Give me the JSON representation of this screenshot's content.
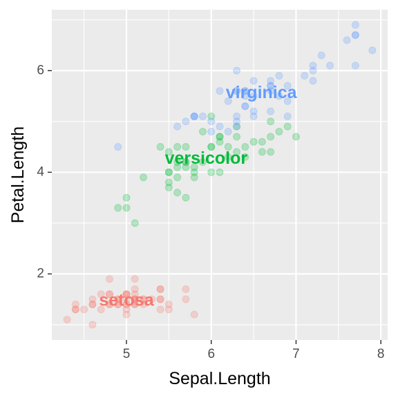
{
  "chart_data": {
    "type": "scatter",
    "xlabel": "Sepal.Length",
    "ylabel": "Petal.Length",
    "xlim": [
      4.12,
      8.08
    ],
    "ylim": [
      0.7,
      7.2
    ],
    "x_major_ticks": [
      5,
      6,
      7,
      8
    ],
    "x_minor_ticks": [
      4.5,
      5.5,
      6.5,
      7.5
    ],
    "y_major_ticks": [
      2,
      4,
      6
    ],
    "y_minor_ticks": [
      1,
      3,
      5,
      7
    ],
    "x_tick_labels": [
      "5",
      "6",
      "7",
      "8"
    ],
    "y_tick_labels": [
      "2",
      "4",
      "6"
    ],
    "grid": true,
    "legend": "none",
    "point_opacity": 0.25,
    "series": [
      {
        "name": "setosa",
        "color": "#F8766D",
        "label": {
          "text": "setosa",
          "x": 5.0,
          "y": 1.46
        },
        "points": [
          [
            5.1,
            1.4
          ],
          [
            4.9,
            1.4
          ],
          [
            4.7,
            1.3
          ],
          [
            4.6,
            1.5
          ],
          [
            5.0,
            1.4
          ],
          [
            5.4,
            1.7
          ],
          [
            4.6,
            1.4
          ],
          [
            5.0,
            1.5
          ],
          [
            4.4,
            1.4
          ],
          [
            4.9,
            1.5
          ],
          [
            5.4,
            1.5
          ],
          [
            4.8,
            1.6
          ],
          [
            4.8,
            1.4
          ],
          [
            4.3,
            1.1
          ],
          [
            5.8,
            1.2
          ],
          [
            5.7,
            1.5
          ],
          [
            5.4,
            1.3
          ],
          [
            5.1,
            1.4
          ],
          [
            5.7,
            1.7
          ],
          [
            5.1,
            1.5
          ],
          [
            5.4,
            1.7
          ],
          [
            5.1,
            1.5
          ],
          [
            4.6,
            1.0
          ],
          [
            5.1,
            1.7
          ],
          [
            4.8,
            1.9
          ],
          [
            5.0,
            1.6
          ],
          [
            5.0,
            1.6
          ],
          [
            5.2,
            1.5
          ],
          [
            5.2,
            1.4
          ],
          [
            4.7,
            1.6
          ],
          [
            4.8,
            1.6
          ],
          [
            5.4,
            1.5
          ],
          [
            5.2,
            1.5
          ],
          [
            5.5,
            1.4
          ],
          [
            4.9,
            1.5
          ],
          [
            5.0,
            1.2
          ],
          [
            5.5,
            1.3
          ],
          [
            4.9,
            1.4
          ],
          [
            4.4,
            1.3
          ],
          [
            5.1,
            1.5
          ],
          [
            5.0,
            1.3
          ],
          [
            4.5,
            1.3
          ],
          [
            4.4,
            1.3
          ],
          [
            5.0,
            1.6
          ],
          [
            5.1,
            1.9
          ],
          [
            4.8,
            1.4
          ],
          [
            5.1,
            1.6
          ],
          [
            4.6,
            1.4
          ],
          [
            5.3,
            1.5
          ],
          [
            5.0,
            1.4
          ]
        ]
      },
      {
        "name": "versicolor",
        "color": "#00BA38",
        "label": {
          "text": "versicolor",
          "x": 5.94,
          "y": 4.26
        },
        "points": [
          [
            7.0,
            4.7
          ],
          [
            6.4,
            4.5
          ],
          [
            6.9,
            4.9
          ],
          [
            5.5,
            4.0
          ],
          [
            6.5,
            4.6
          ],
          [
            5.7,
            4.5
          ],
          [
            6.3,
            4.7
          ],
          [
            4.9,
            3.3
          ],
          [
            6.6,
            4.6
          ],
          [
            5.2,
            3.9
          ],
          [
            5.0,
            3.5
          ],
          [
            5.9,
            4.2
          ],
          [
            6.0,
            4.0
          ],
          [
            6.1,
            4.7
          ],
          [
            5.6,
            3.6
          ],
          [
            6.7,
            4.4
          ],
          [
            5.6,
            4.5
          ],
          [
            5.8,
            4.1
          ],
          [
            6.2,
            4.5
          ],
          [
            5.6,
            3.9
          ],
          [
            5.9,
            4.8
          ],
          [
            6.1,
            4.0
          ],
          [
            6.3,
            4.9
          ],
          [
            6.1,
            4.7
          ],
          [
            6.4,
            4.3
          ],
          [
            6.6,
            4.4
          ],
          [
            6.8,
            4.8
          ],
          [
            6.7,
            5.0
          ],
          [
            6.0,
            4.5
          ],
          [
            5.7,
            3.5
          ],
          [
            5.5,
            3.8
          ],
          [
            5.5,
            3.7
          ],
          [
            5.8,
            3.9
          ],
          [
            6.0,
            5.1
          ],
          [
            5.4,
            4.5
          ],
          [
            6.0,
            4.5
          ],
          [
            6.7,
            4.7
          ],
          [
            6.3,
            4.4
          ],
          [
            5.6,
            4.1
          ],
          [
            5.5,
            4.0
          ],
          [
            5.5,
            4.4
          ],
          [
            6.1,
            4.6
          ],
          [
            5.8,
            4.0
          ],
          [
            5.0,
            3.3
          ],
          [
            5.6,
            4.2
          ],
          [
            5.7,
            4.2
          ],
          [
            5.7,
            4.2
          ],
          [
            6.2,
            4.3
          ],
          [
            5.1,
            3.0
          ],
          [
            5.7,
            4.1
          ]
        ]
      },
      {
        "name": "virginica",
        "color": "#619CFF",
        "label": {
          "text": "virginica",
          "x": 6.59,
          "y": 5.55
        },
        "points": [
          [
            6.3,
            6.0
          ],
          [
            5.8,
            5.1
          ],
          [
            7.1,
            5.9
          ],
          [
            6.3,
            5.6
          ],
          [
            6.5,
            5.8
          ],
          [
            7.6,
            6.6
          ],
          [
            4.9,
            4.5
          ],
          [
            7.3,
            6.3
          ],
          [
            6.7,
            5.8
          ],
          [
            7.2,
            6.1
          ],
          [
            6.5,
            5.1
          ],
          [
            6.4,
            5.3
          ],
          [
            6.8,
            5.5
          ],
          [
            5.7,
            5.0
          ],
          [
            5.8,
            5.1
          ],
          [
            6.4,
            5.3
          ],
          [
            6.5,
            5.5
          ],
          [
            7.7,
            6.7
          ],
          [
            7.7,
            6.9
          ],
          [
            6.0,
            5.0
          ],
          [
            6.9,
            5.7
          ],
          [
            5.6,
            4.9
          ],
          [
            7.7,
            6.7
          ],
          [
            6.3,
            4.9
          ],
          [
            6.7,
            5.7
          ],
          [
            7.2,
            6.0
          ],
          [
            6.2,
            4.8
          ],
          [
            6.1,
            4.9
          ],
          [
            6.4,
            5.6
          ],
          [
            7.2,
            5.8
          ],
          [
            7.4,
            6.1
          ],
          [
            7.9,
            6.4
          ],
          [
            6.4,
            5.6
          ],
          [
            6.3,
            5.1
          ],
          [
            6.1,
            5.6
          ],
          [
            7.7,
            6.1
          ],
          [
            6.3,
            5.6
          ],
          [
            6.4,
            5.5
          ],
          [
            6.0,
            4.8
          ],
          [
            6.9,
            5.4
          ],
          [
            6.7,
            5.6
          ],
          [
            6.9,
            5.1
          ],
          [
            5.8,
            5.1
          ],
          [
            6.8,
            5.9
          ],
          [
            6.7,
            5.7
          ],
          [
            6.7,
            5.2
          ],
          [
            6.3,
            5.0
          ],
          [
            6.5,
            5.2
          ],
          [
            6.2,
            5.4
          ],
          [
            5.9,
            5.1
          ]
        ]
      }
    ]
  }
}
